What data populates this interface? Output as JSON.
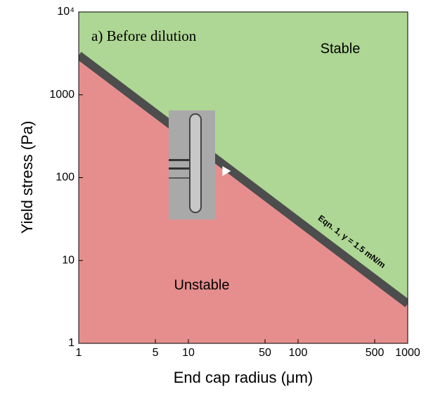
{
  "chart_data": {
    "type": "region",
    "x_label": "End cap radius (μm)",
    "y_label": "Yield stress (Pa)",
    "annotations": [
      "a) Before dilution",
      "Stable",
      "Unstable",
      "Eqn. 1, γ = 1.5 mN/m"
    ],
    "xlim": [
      1,
      1000
    ],
    "ylim": [
      1,
      10000
    ],
    "log_x": true,
    "log_y": true,
    "xticks": [
      1,
      5,
      10,
      50,
      100,
      500,
      1000
    ],
    "yticks": [
      1,
      10,
      100,
      1000,
      {
        "value": 10000,
        "label": "10⁴"
      }
    ],
    "boundary": {
      "x": [
        1,
        1000
      ],
      "y": [
        3000,
        3
      ],
      "color": "#4d4d4d"
    },
    "above_color": "#aed694",
    "below_color": "#e68e8e",
    "point": {
      "x": 22,
      "y": 120,
      "color": "#ffffff"
    }
  }
}
